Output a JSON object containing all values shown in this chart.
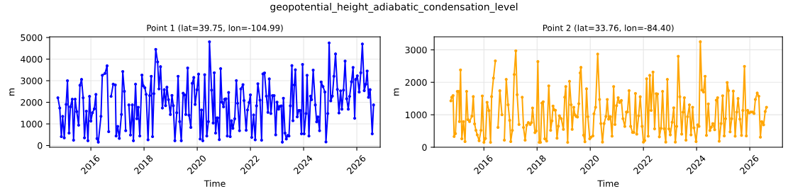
{
  "chart_data": [
    {
      "type": "line",
      "title": "Point 1 (lat=39.75, lon=-104.99)",
      "annotations": [
        "geopotential_height_adiabatic_condensation_level"
      ],
      "xlabel": "Time",
      "ylabel": "m",
      "xlim": [
        2014.45,
        2026.88
      ],
      "ylim": [
        -80,
        5030
      ],
      "xticks": [
        2016,
        2018,
        2020,
        2022,
        2024,
        2026
      ],
      "yticks": [
        0,
        1000,
        2000,
        3000,
        4000,
        5000
      ],
      "grid": true,
      "marker": "circle",
      "line_style": "solid",
      "series": [
        {
          "color": "#0000ff",
          "x": [
            2014.76,
            2014.83,
            2014.89,
            2014.94,
            2015.0,
            2015.07,
            2015.12,
            2015.18,
            2015.23,
            2015.3,
            2015.35,
            2015.41,
            2015.47,
            2015.54,
            2015.59,
            2015.65,
            2015.71,
            2015.76,
            2015.83,
            2015.89,
            2015.95,
            2016.0,
            2016.06,
            2016.13,
            2016.19,
            2016.23,
            2016.28,
            2016.38,
            2016.43,
            2016.53,
            2016.61,
            2016.67,
            2016.72,
            2016.76,
            2016.84,
            2016.92,
            2016.95,
            2017.01,
            2017.07,
            2017.15,
            2017.2,
            2017.26,
            2017.31,
            2017.37,
            2017.43,
            2017.49,
            2017.56,
            2017.6,
            2017.68,
            2017.73,
            2017.78,
            2017.84,
            2017.92,
            2017.97,
            2018.03,
            2018.08,
            2018.15,
            2018.21,
            2018.27,
            2018.32,
            2018.37,
            2018.44,
            2018.51,
            2018.56,
            2018.62,
            2018.69,
            2018.76,
            2018.81,
            2018.86,
            2018.92,
            2018.99,
            2019.05,
            2019.1,
            2019.16,
            2019.23,
            2019.28,
            2019.34,
            2019.4,
            2019.47,
            2019.53,
            2019.57,
            2019.64,
            2019.69,
            2019.76,
            2019.81,
            2019.87,
            2019.92,
            2019.99,
            2020.05,
            2020.11,
            2020.16,
            2020.21,
            2020.28,
            2020.36,
            2020.42,
            2020.46,
            2020.54,
            2020.6,
            2020.64,
            2020.69,
            2020.74,
            2020.77,
            2020.83,
            2020.88,
            2020.93,
            2020.99,
            2021.03,
            2021.08,
            2021.13,
            2021.18,
            2021.24,
            2021.29,
            2021.34,
            2021.41,
            2021.47,
            2021.52,
            2021.59,
            2021.64,
            2021.72,
            2021.76,
            2021.84,
            2021.89,
            2021.95,
            2022.0,
            2022.05,
            2022.12,
            2022.18,
            2022.23,
            2022.28,
            2022.36,
            2022.42,
            2022.47,
            2022.53,
            2022.6,
            2022.66,
            2022.71,
            2022.77,
            2022.83,
            2022.89,
            2022.95,
            2023.0,
            2023.06,
            2023.1,
            2023.16,
            2023.2,
            2023.24,
            2023.3,
            2023.35,
            2023.4,
            2023.45,
            2023.5,
            2023.56,
            2023.6,
            2023.65,
            2023.69,
            2023.76,
            2023.82,
            2023.87,
            2023.92,
            2023.96,
            2024.02,
            2024.09,
            2024.13,
            2024.2,
            2024.26,
            2024.3,
            2024.36,
            2024.44,
            2024.49,
            2024.54,
            2024.6,
            2024.66,
            2024.73,
            2024.8,
            2024.84,
            2024.91,
            2024.96,
            2025.02,
            2025.08,
            2025.14,
            2025.2,
            2025.27,
            2025.33,
            2025.39,
            2025.44,
            2025.5,
            2025.56,
            2025.62,
            2025.68,
            2025.73,
            2025.8,
            2025.86,
            2025.92,
            2025.96,
            2026.02,
            2026.09,
            2026.15,
            2026.21,
            2026.28,
            2026.34,
            2026.39,
            2026.44,
            2026.5,
            2026.58,
            2026.63
          ],
          "values": [
            2210,
            1735,
            410,
            1350,
            355,
            1900,
            3000,
            575,
            1790,
            2145,
            245,
            2145,
            1570,
            940,
            2785,
            3060,
            2210,
            355,
            1590,
            220,
            2275,
            1130,
            1515,
            1700,
            2365,
            320,
            155,
            1350,
            3250,
            3335,
            3690,
            640,
            null,
            2275,
            2840,
            2805,
            440,
            885,
            330,
            1435,
            3425,
            2510,
            685,
            null,
            1880,
            485,
            1880,
            220,
            2840,
            1240,
            1770,
            440,
            3260,
            2760,
            2675,
            2365,
            265,
            2310,
            3205,
            410,
            2400,
            4450,
            3870,
            2620,
            3650,
            1735,
            2585,
            1845,
            2700,
            2120,
            1435,
            2320,
            1845,
            220,
            1515,
            3205,
            1105,
            220,
            2420,
            2340,
            1435,
            3590,
            1405,
            840,
            2875,
            3150,
            1900,
            2585,
            3305,
            300,
            1645,
            220,
            3280,
            440,
            1105,
            4800,
            2565,
            1040,
            3370,
            575,
            1280,
            1280,
            275,
            3560,
            2010,
            1790,
            2145,
            2165,
            440,
            2455,
            410,
            1150,
            795,
            1240,
            3005,
            1955,
            685,
            2620,
            2820,
            2080,
            705,
            1645,
            1990,
            2345,
            375,
            1415,
            265,
            1835,
            2860,
            2100,
            245,
            3315,
            3360,
            2285,
            1535,
            3085,
            1480,
            2310,
            2310,
            495,
            2010,
            1680,
            1810,
            1835,
            155,
            2190,
            575,
            300,
            465,
            440,
            1835,
            3700,
            1150,
            2805,
            3505,
            1325,
            1625,
            1625,
            540,
            3755,
            540,
            1480,
            3250,
            440,
            2285,
            2120,
            3490,
            1880,
            1095,
            1325,
            685,
            2940,
            2730,
            2475,
            165,
            1480,
            4750,
            2065,
            2285,
            3205,
            4240,
            2595,
            1505,
            2530,
            1680,
            2565,
            3910,
            2165,
            1680,
            2275,
            2950,
            3615,
            1260,
            3060,
            3225,
            2475,
            3370,
            4700,
            2540,
            2840,
            3450,
            2230,
            2585,
            540,
            1880
          ]
        }
      ]
    },
    {
      "type": "line",
      "title": "Point 2 (lat=33.76, lon=-84.40)",
      "xlabel": "Time",
      "ylabel": "m",
      "xlim": [
        2014.13,
        2027.23
      ],
      "ylim": [
        0,
        3400
      ],
      "xticks": [
        2016,
        2018,
        2020,
        2022,
        2024,
        2026
      ],
      "yticks": [
        0,
        1000,
        2000,
        3000
      ],
      "grid": true,
      "marker": "circle",
      "line_style": "solid",
      "series": [
        {
          "color": "#ffa500",
          "x": [
            2014.76,
            2014.79,
            2014.84,
            2014.88,
            2014.93,
            2015.0,
            2015.06,
            2015.08,
            2015.12,
            2015.17,
            2015.23,
            2015.29,
            2015.35,
            2015.4,
            2015.46,
            2015.55,
            2015.6,
            2015.65,
            2015.7,
            2015.75,
            2015.82,
            2015.89,
            2015.94,
            2016.0,
            2016.06,
            2016.12,
            2016.19,
            2016.25,
            2016.29,
            2016.36,
            2016.43,
            2016.48,
            2016.53,
            2016.6,
            2016.68,
            2016.72,
            2016.77,
            2016.84,
            2016.91,
            2016.97,
            2017.01,
            2017.07,
            2017.14,
            2017.2,
            2017.25,
            2017.32,
            2017.38,
            2017.44,
            2017.49,
            2017.55,
            2017.61,
            2017.67,
            2017.74,
            2017.79,
            2017.83,
            2017.92,
            2017.97,
            2018.03,
            2018.08,
            2018.13,
            2018.18,
            2018.23,
            2018.29,
            2018.36,
            2018.44,
            2018.51,
            2018.56,
            2018.6,
            2018.65,
            2018.69,
            2018.75,
            2018.8,
            2018.84,
            2018.91,
            2018.99,
            2019.04,
            2019.08,
            2019.15,
            2019.22,
            2019.28,
            2019.32,
            2019.38,
            2019.42,
            2019.47,
            2019.52,
            2019.57,
            2019.62,
            2019.65,
            2019.75,
            2019.8,
            2019.86,
            2019.91,
            2019.98,
            2020.03,
            2020.1,
            2020.14,
            2020.2,
            2020.28,
            2020.35,
            2020.4,
            2020.46,
            2020.52,
            2020.59,
            2020.64,
            2020.69,
            2020.73,
            2020.76,
            2020.82,
            2020.88,
            2020.93,
            2020.99,
            2021.05,
            2021.1,
            2021.17,
            2021.23,
            2021.3,
            2021.36,
            2021.4,
            2021.46,
            2021.52,
            2021.59,
            2021.64,
            2021.7,
            2021.75,
            2021.82,
            2021.88,
            2021.95,
            2022.0,
            2022.05,
            2022.12,
            2022.18,
            2022.24,
            2022.29,
            2022.36,
            2022.42,
            2022.48,
            2022.53,
            2022.6,
            2022.66,
            2022.72,
            2022.78,
            2022.84,
            2022.9,
            2022.96,
            2023.01,
            2023.08,
            2023.14,
            2023.2,
            2023.25,
            2023.31,
            2023.37,
            2023.44,
            2023.49,
            2023.54,
            2023.6,
            2023.66,
            2023.73,
            2023.79,
            2023.85,
            2023.9,
            2023.98,
            2024.04,
            2024.09,
            2024.14,
            2024.2,
            2024.26,
            2024.32,
            2024.37,
            2024.44,
            2024.5,
            2024.55,
            2024.61,
            2024.68,
            2024.74,
            2024.79,
            2024.85,
            2024.92,
            2024.98,
            2025.04,
            2025.09,
            2025.15,
            2025.2,
            2025.26,
            2025.32,
            2025.38,
            2025.45,
            2025.51,
            2025.56,
            2025.63,
            2025.69,
            2025.74,
            2025.8,
            2025.87,
            2025.92,
            2025.98,
            2026.04,
            2026.1,
            2026.16,
            2026.21,
            2026.28,
            2026.34,
            2026.4,
            2026.45,
            2026.52,
            2026.58,
            2026.63
          ],
          "values": [
            1430,
            1540,
            1590,
            330,
            420,
            1720,
            1720,
            790,
            2380,
            260,
            790,
            175,
            1720,
            850,
            790,
            960,
            1560,
            720,
            520,
            380,
            200,
            520,
            1580,
            150,
            270,
            1385,
            1130,
            150,
            1560,
            2130,
            2660,
            null,
            610,
            1740,
            1000,
            null,
            220,
            2090,
            1310,
            830,
            175,
            520,
            2240,
            2970,
            1620,
            700,
            null,
            1540,
            610,
            220,
            680,
            760,
            700,
            760,
            1210,
            450,
            500,
            2640,
            150,
            150,
            1360,
            1400,
            260,
            190,
            1890,
            520,
            810,
            1270,
            1150,
            1140,
            280,
            650,
            970,
            880,
            550,
            1540,
            1870,
            150,
            2030,
            1310,
            550,
            1230,
            1000,
            950,
            930,
            1340,
            2290,
            2460,
            370,
            170,
            1800,
            940,
            260,
            310,
            350,
            1030,
            1230,
            2870,
            1470,
            730,
            160,
            730,
            950,
            1470,
            865,
            940,
            940,
            340,
            1870,
            700,
            1280,
            1525,
            1380,
            1440,
            880,
            640,
            1085,
            1085,
            1745,
            645,
            455,
            455,
            1655,
            405,
            970,
            1555,
            645,
            160,
            205,
            2110,
            340,
            2215,
            1135,
            2315,
            565,
            1650,
            1640,
            320,
            585,
            1720,
            570,
            160,
            2090,
            565,
            380,
            770,
            1215,
            160,
            645,
            2800,
            1555,
            405,
            1080,
            1525,
            220,
            940,
            1305,
            380,
            1230,
            600,
            175,
            690,
            645,
            3250,
            1760,
            1700,
            2185,
            365,
            1335,
            515,
            615,
            730,
            540,
            1450,
            1525,
            185,
            730,
            1585,
            350,
            880,
            1995,
            1745,
            475,
            880,
            1730,
            340,
            1085,
            1500,
            865,
            365,
            1135,
            2490,
            350,
            1135,
            1055,
            1085,
            1085,
            1040,
            1470,
            1670,
            1570,
            310,
            790,
            690,
            1100,
            1230
          ]
        }
      ]
    }
  ]
}
